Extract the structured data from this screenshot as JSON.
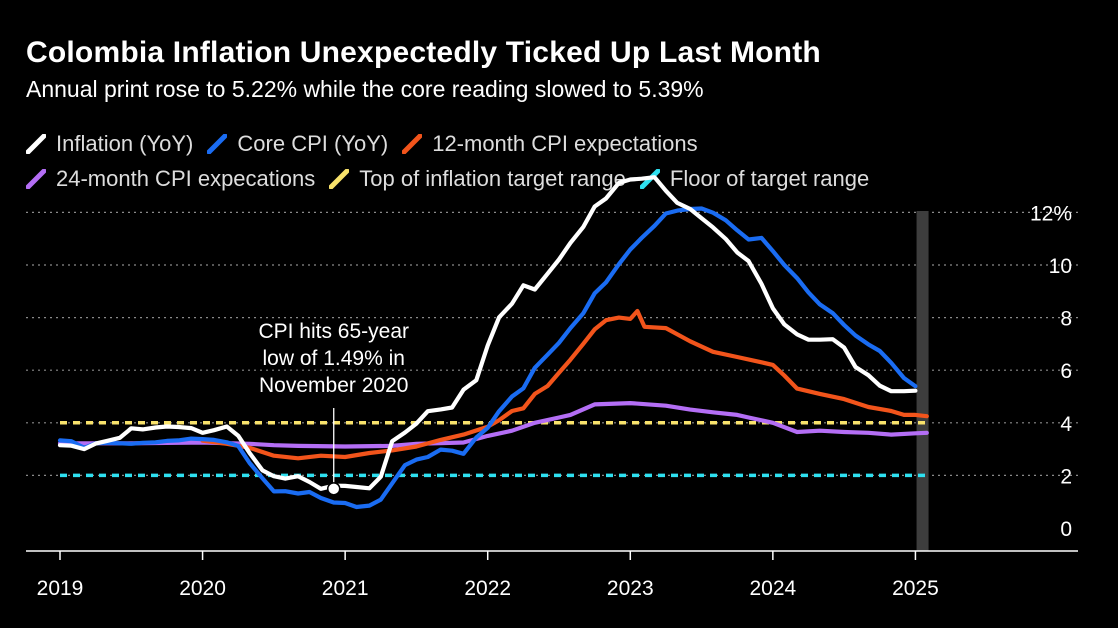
{
  "title": "Colombia Inflation Unexpectedly Ticked Up Last Month",
  "subtitle": "Annual print rose to 5.22% while the core reading slowed to 5.39%",
  "chart_data": {
    "type": "line",
    "title": "Colombia Inflation Unexpectedly Ticked Up Last Month",
    "subtitle": "Annual print rose to 5.22% while the core reading slowed to 5.39%",
    "xlabel": "",
    "ylabel": "",
    "x_ticks": [
      "2019",
      "2020",
      "2021",
      "2022",
      "2023",
      "2024",
      "2025"
    ],
    "y_ticks": [
      "0",
      "2",
      "4",
      "6",
      "8",
      "10",
      "12%"
    ],
    "y_tick_values": [
      0,
      2,
      4,
      6,
      8,
      10,
      12
    ],
    "xlim": [
      2019.0,
      2026.0
    ],
    "ylim": [
      -1.0,
      13.0
    ],
    "grid": "horizontal dotted",
    "legend_position": "top",
    "highlight_band_x": 2025.05,
    "series": [
      {
        "name": "Inflation (YoY)",
        "color": "#ffffff",
        "points": [
          [
            2019.0,
            3.15
          ],
          [
            2019.08,
            3.13
          ],
          [
            2019.17,
            3.0
          ],
          [
            2019.25,
            3.21
          ],
          [
            2019.33,
            3.31
          ],
          [
            2019.42,
            3.43
          ],
          [
            2019.5,
            3.79
          ],
          [
            2019.58,
            3.75
          ],
          [
            2019.67,
            3.82
          ],
          [
            2019.75,
            3.86
          ],
          [
            2019.83,
            3.84
          ],
          [
            2019.92,
            3.8
          ],
          [
            2020.0,
            3.62
          ],
          [
            2020.08,
            3.72
          ],
          [
            2020.17,
            3.86
          ],
          [
            2020.25,
            3.51
          ],
          [
            2020.33,
            2.85
          ],
          [
            2020.42,
            2.19
          ],
          [
            2020.5,
            1.97
          ],
          [
            2020.58,
            1.88
          ],
          [
            2020.67,
            1.97
          ],
          [
            2020.75,
            1.75
          ],
          [
            2020.83,
            1.49
          ],
          [
            2020.92,
            1.61
          ],
          [
            2021.0,
            1.6
          ],
          [
            2021.08,
            1.56
          ],
          [
            2021.17,
            1.51
          ],
          [
            2021.25,
            1.95
          ],
          [
            2021.33,
            3.3
          ],
          [
            2021.42,
            3.63
          ],
          [
            2021.5,
            3.97
          ],
          [
            2021.58,
            4.44
          ],
          [
            2021.67,
            4.51
          ],
          [
            2021.75,
            4.58
          ],
          [
            2021.83,
            5.26
          ],
          [
            2021.92,
            5.62
          ],
          [
            2022.0,
            6.94
          ],
          [
            2022.08,
            8.01
          ],
          [
            2022.17,
            8.53
          ],
          [
            2022.25,
            9.23
          ],
          [
            2022.33,
            9.07
          ],
          [
            2022.42,
            9.67
          ],
          [
            2022.5,
            10.21
          ],
          [
            2022.58,
            10.84
          ],
          [
            2022.67,
            11.44
          ],
          [
            2022.75,
            12.22
          ],
          [
            2022.83,
            12.53
          ],
          [
            2022.92,
            13.12
          ],
          [
            2023.0,
            13.25
          ],
          [
            2023.08,
            13.28
          ],
          [
            2023.17,
            13.34
          ],
          [
            2023.25,
            12.82
          ],
          [
            2023.33,
            12.36
          ],
          [
            2023.42,
            12.13
          ],
          [
            2023.5,
            11.78
          ],
          [
            2023.58,
            11.43
          ],
          [
            2023.67,
            10.99
          ],
          [
            2023.75,
            10.48
          ],
          [
            2023.83,
            10.15
          ],
          [
            2023.92,
            9.28
          ],
          [
            2024.0,
            8.35
          ],
          [
            2024.08,
            7.74
          ],
          [
            2024.17,
            7.36
          ],
          [
            2024.25,
            7.16
          ],
          [
            2024.33,
            7.16
          ],
          [
            2024.42,
            7.18
          ],
          [
            2024.5,
            6.86
          ],
          [
            2024.58,
            6.12
          ],
          [
            2024.67,
            5.81
          ],
          [
            2024.75,
            5.41
          ],
          [
            2024.83,
            5.2
          ],
          [
            2024.92,
            5.2
          ],
          [
            2025.0,
            5.22
          ]
        ]
      },
      {
        "name": "Core CPI (YoY)",
        "color": "#1a6cf2",
        "points": [
          [
            2019.0,
            3.33
          ],
          [
            2019.08,
            3.3
          ],
          [
            2019.17,
            3.05
          ],
          [
            2019.25,
            3.22
          ],
          [
            2019.33,
            3.24
          ],
          [
            2019.42,
            3.22
          ],
          [
            2019.5,
            3.2
          ],
          [
            2019.58,
            3.24
          ],
          [
            2019.67,
            3.26
          ],
          [
            2019.75,
            3.31
          ],
          [
            2019.83,
            3.33
          ],
          [
            2019.92,
            3.4
          ],
          [
            2020.0,
            3.38
          ],
          [
            2020.08,
            3.35
          ],
          [
            2020.17,
            3.26
          ],
          [
            2020.25,
            3.12
          ],
          [
            2020.33,
            2.47
          ],
          [
            2020.42,
            1.89
          ],
          [
            2020.5,
            1.39
          ],
          [
            2020.58,
            1.4
          ],
          [
            2020.67,
            1.31
          ],
          [
            2020.75,
            1.37
          ],
          [
            2020.83,
            1.14
          ],
          [
            2020.92,
            0.97
          ],
          [
            2021.0,
            0.95
          ],
          [
            2021.08,
            0.8
          ],
          [
            2021.17,
            0.85
          ],
          [
            2021.25,
            1.08
          ],
          [
            2021.33,
            1.7
          ],
          [
            2021.42,
            2.39
          ],
          [
            2021.5,
            2.6
          ],
          [
            2021.58,
            2.7
          ],
          [
            2021.67,
            2.98
          ],
          [
            2021.75,
            2.94
          ],
          [
            2021.83,
            2.82
          ],
          [
            2021.92,
            3.44
          ],
          [
            2022.0,
            3.81
          ],
          [
            2022.08,
            4.44
          ],
          [
            2022.17,
            5.0
          ],
          [
            2022.25,
            5.31
          ],
          [
            2022.33,
            6.09
          ],
          [
            2022.42,
            6.59
          ],
          [
            2022.5,
            7.04
          ],
          [
            2022.58,
            7.6
          ],
          [
            2022.67,
            8.16
          ],
          [
            2022.75,
            8.92
          ],
          [
            2022.83,
            9.34
          ],
          [
            2022.92,
            10.03
          ],
          [
            2023.0,
            10.59
          ],
          [
            2023.08,
            11.03
          ],
          [
            2023.17,
            11.49
          ],
          [
            2023.25,
            11.96
          ],
          [
            2023.33,
            12.07
          ],
          [
            2023.42,
            12.13
          ],
          [
            2023.5,
            12.15
          ],
          [
            2023.58,
            11.99
          ],
          [
            2023.67,
            11.7
          ],
          [
            2023.75,
            11.32
          ],
          [
            2023.83,
            10.97
          ],
          [
            2023.92,
            11.03
          ],
          [
            2024.0,
            10.53
          ],
          [
            2024.08,
            10.0
          ],
          [
            2024.17,
            9.5
          ],
          [
            2024.25,
            8.96
          ],
          [
            2024.33,
            8.5
          ],
          [
            2024.42,
            8.17
          ],
          [
            2024.5,
            7.72
          ],
          [
            2024.58,
            7.32
          ],
          [
            2024.67,
            6.98
          ],
          [
            2024.75,
            6.73
          ],
          [
            2024.83,
            6.28
          ],
          [
            2024.92,
            5.7
          ],
          [
            2025.0,
            5.39
          ]
        ]
      },
      {
        "name": "12-month CPI expectations",
        "color": "#f2541b",
        "points": [
          [
            2020.0,
            3.32
          ],
          [
            2020.17,
            3.2
          ],
          [
            2020.33,
            3.05
          ],
          [
            2020.5,
            2.75
          ],
          [
            2020.67,
            2.65
          ],
          [
            2020.83,
            2.75
          ],
          [
            2021.0,
            2.7
          ],
          [
            2021.17,
            2.85
          ],
          [
            2021.33,
            2.95
          ],
          [
            2021.5,
            3.1
          ],
          [
            2021.67,
            3.35
          ],
          [
            2021.83,
            3.55
          ],
          [
            2022.0,
            3.85
          ],
          [
            2022.08,
            4.1
          ],
          [
            2022.17,
            4.45
          ],
          [
            2022.25,
            4.55
          ],
          [
            2022.33,
            5.1
          ],
          [
            2022.42,
            5.4
          ],
          [
            2022.5,
            5.9
          ],
          [
            2022.58,
            6.4
          ],
          [
            2022.67,
            7.0
          ],
          [
            2022.75,
            7.55
          ],
          [
            2022.83,
            7.9
          ],
          [
            2022.92,
            8.0
          ],
          [
            2023.0,
            7.95
          ],
          [
            2023.05,
            8.25
          ],
          [
            2023.1,
            7.65
          ],
          [
            2023.25,
            7.6
          ],
          [
            2023.42,
            7.1
          ],
          [
            2023.58,
            6.7
          ],
          [
            2023.75,
            6.5
          ],
          [
            2023.92,
            6.3
          ],
          [
            2024.0,
            6.2
          ],
          [
            2024.08,
            5.8
          ],
          [
            2024.17,
            5.3
          ],
          [
            2024.33,
            5.1
          ],
          [
            2024.5,
            4.9
          ],
          [
            2024.67,
            4.6
          ],
          [
            2024.83,
            4.45
          ],
          [
            2024.92,
            4.3
          ],
          [
            2025.0,
            4.3
          ],
          [
            2025.08,
            4.25
          ]
        ]
      },
      {
        "name": "24-month CPI expecations",
        "color": "#b46ef5",
        "points": [
          [
            2019.0,
            3.22
          ],
          [
            2019.5,
            3.22
          ],
          [
            2020.0,
            3.25
          ],
          [
            2020.33,
            3.2
          ],
          [
            2020.5,
            3.15
          ],
          [
            2020.67,
            3.12
          ],
          [
            2021.0,
            3.1
          ],
          [
            2021.33,
            3.12
          ],
          [
            2021.5,
            3.2
          ],
          [
            2021.83,
            3.25
          ],
          [
            2022.0,
            3.5
          ],
          [
            2022.17,
            3.7
          ],
          [
            2022.33,
            4.0
          ],
          [
            2022.5,
            4.2
          ],
          [
            2022.58,
            4.3
          ],
          [
            2022.75,
            4.7
          ],
          [
            2023.0,
            4.75
          ],
          [
            2023.25,
            4.65
          ],
          [
            2023.42,
            4.5
          ],
          [
            2023.58,
            4.4
          ],
          [
            2023.75,
            4.3
          ],
          [
            2023.83,
            4.2
          ],
          [
            2024.0,
            4.0
          ],
          [
            2024.17,
            3.65
          ],
          [
            2024.33,
            3.7
          ],
          [
            2024.5,
            3.65
          ],
          [
            2024.67,
            3.62
          ],
          [
            2024.83,
            3.55
          ],
          [
            2025.0,
            3.6
          ],
          [
            2025.08,
            3.62
          ]
        ]
      },
      {
        "name": "Top of inflation target range",
        "color": "#f8e26b",
        "dashed": true,
        "points": [
          [
            2019.0,
            4.0
          ],
          [
            2025.08,
            4.0
          ]
        ]
      },
      {
        "name": "Floor of target range",
        "color": "#2ee0f0",
        "dashed": true,
        "points": [
          [
            2019.0,
            2.0
          ],
          [
            2025.08,
            2.0
          ]
        ]
      }
    ],
    "annotations": [
      {
        "text_lines": [
          "CPI hits 65-year",
          "low of 1.49% in",
          "November 2020"
        ],
        "point": [
          2020.92,
          1.49
        ]
      }
    ]
  }
}
